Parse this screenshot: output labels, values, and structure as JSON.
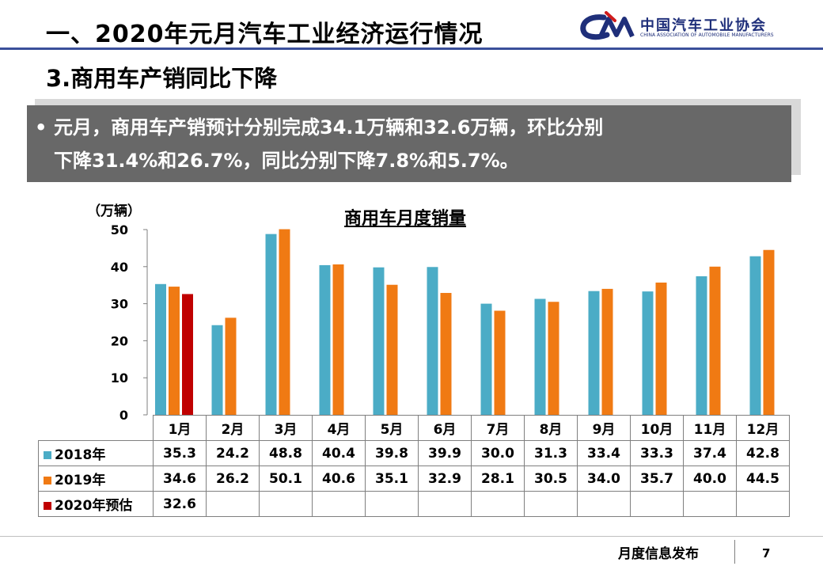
{
  "header": {
    "title": "一、2020年元月汽车工业经济运行情况",
    "logo_cn": "中国汽车工业协会",
    "logo_en": "CHINA ASSOCIATION OF AUTOMOBILE MANUFACTURERS"
  },
  "subtitle": "3.商用车产销同比下降",
  "bullet": {
    "marker": "•",
    "line1": "元月，商用车产销预计分别完成34.1万辆和32.6万辆，环比分别",
    "line2": "下降31.4%和26.7%，同比分别下降7.8%和5.7%。"
  },
  "chart_data": {
    "type": "bar",
    "title": "商用车月度销量",
    "ylabel": "（万辆）",
    "ylim": [
      0,
      50
    ],
    "yticks": [
      "50",
      "40",
      "30",
      "20",
      "10",
      "0"
    ],
    "categories": [
      "1月",
      "2月",
      "3月",
      "4月",
      "5月",
      "6月",
      "7月",
      "8月",
      "9月",
      "10月",
      "11月",
      "12月"
    ],
    "series": [
      {
        "name": "2018年",
        "color": "#4bacc6",
        "values": [
          35.3,
          24.2,
          48.8,
          40.4,
          39.8,
          39.9,
          30.0,
          31.3,
          33.4,
          33.3,
          37.4,
          42.8
        ],
        "labels": [
          "35.3",
          "24.2",
          "48.8",
          "40.4",
          "39.8",
          "39.9",
          "30.0",
          "31.3",
          "33.4",
          "33.3",
          "37.4",
          "42.8"
        ]
      },
      {
        "name": "2019年",
        "color": "#f07a13",
        "values": [
          34.6,
          26.2,
          50.1,
          40.6,
          35.1,
          32.9,
          28.1,
          30.5,
          34.0,
          35.7,
          40.0,
          44.5
        ],
        "labels": [
          "34.6",
          "26.2",
          "50.1",
          "40.6",
          "35.1",
          "32.9",
          "28.1",
          "30.5",
          "34.0",
          "35.7",
          "40.0",
          "44.5"
        ]
      },
      {
        "name": "2020年预估",
        "color": "#c00000",
        "values": [
          32.6,
          null,
          null,
          null,
          null,
          null,
          null,
          null,
          null,
          null,
          null,
          null
        ],
        "labels": [
          "32.6",
          "",
          "",
          "",
          "",
          "",
          "",
          "",
          "",
          "",
          "",
          ""
        ]
      }
    ],
    "grid": false,
    "legend": "data-table"
  },
  "footer": {
    "text": "月度信息发布",
    "page": "7"
  }
}
